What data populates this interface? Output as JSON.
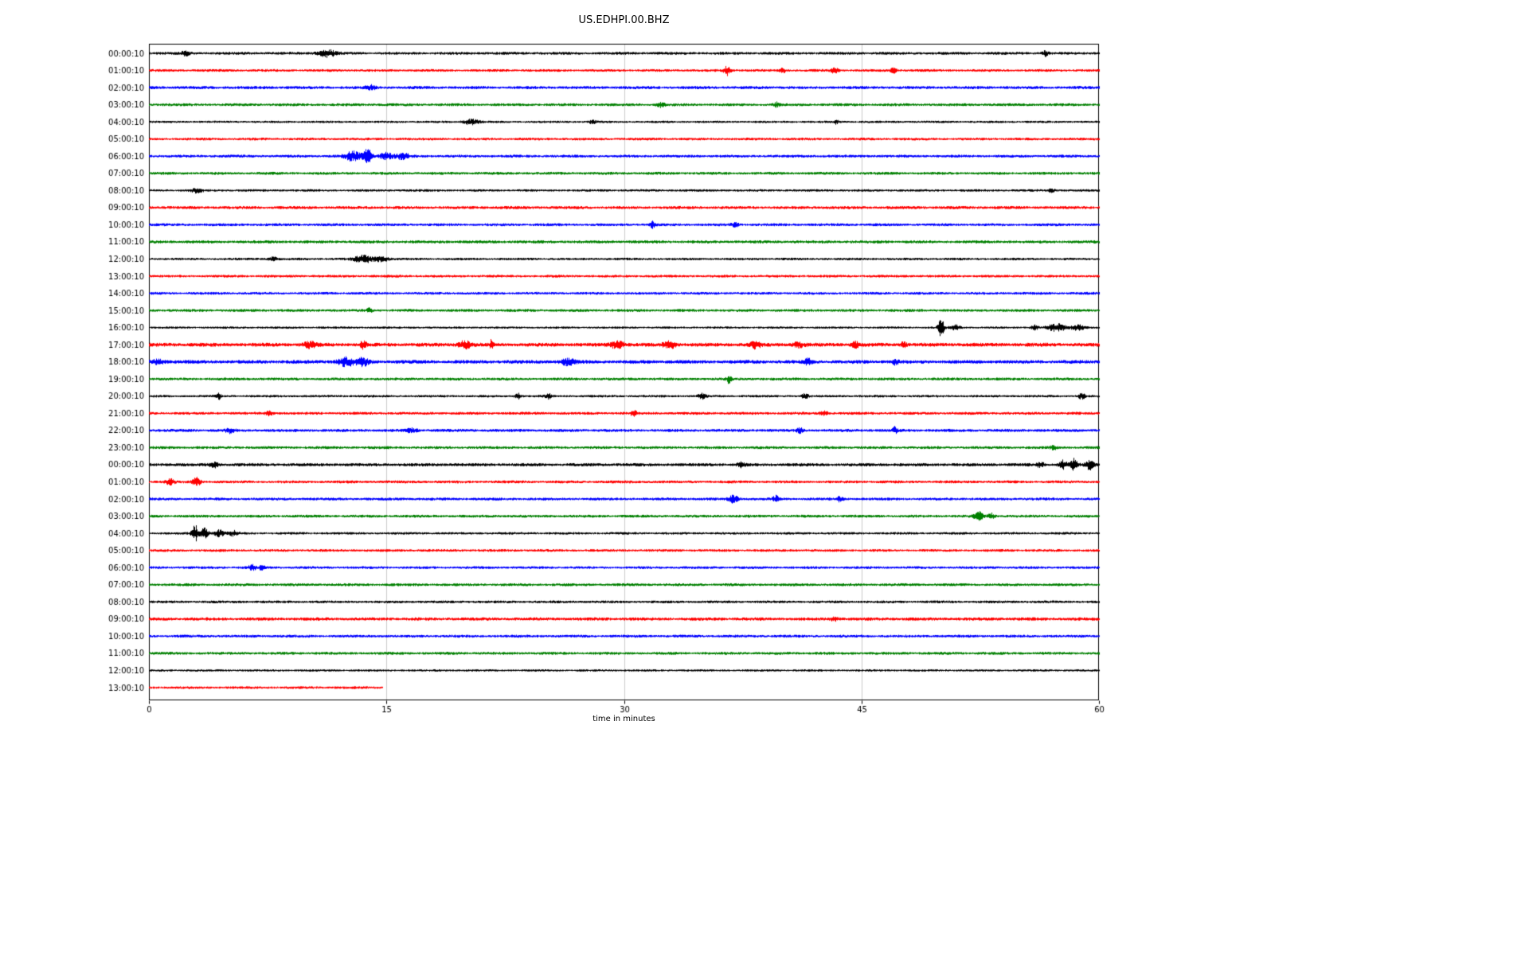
{
  "chart_data": {
    "type": "line",
    "subtype": "seismogram-dayplot",
    "title": "US.EDHPI.00.BHZ",
    "xlabel": "time in minutes",
    "ylabel": "",
    "x_range": [
      0,
      60
    ],
    "x_ticks": [
      0,
      15,
      30,
      45,
      60
    ],
    "grid": "vertical-light",
    "trace_color_cycle": [
      "#000000",
      "#ff0000",
      "#0000ff",
      "#008000"
    ],
    "rows": [
      {
        "label": "00:00:10",
        "color": "#000000",
        "base_amp": 1.5,
        "duration_min": 60,
        "events": [
          [
            2.3,
            2,
            0.4
          ],
          [
            11.2,
            3.5,
            1.0
          ],
          [
            56.6,
            2.5,
            0.3
          ]
        ]
      },
      {
        "label": "01:00:10",
        "color": "#ff0000",
        "base_amp": 1.4,
        "duration_min": 60,
        "events": [
          [
            36.5,
            5,
            0.35
          ],
          [
            40.0,
            2.5,
            0.3
          ],
          [
            43.3,
            3,
            0.35
          ],
          [
            47.0,
            2.5,
            0.3
          ]
        ]
      },
      {
        "label": "02:00:10",
        "color": "#0000ff",
        "base_amp": 1.6,
        "duration_min": 60,
        "events": [
          [
            14.0,
            2,
            0.5
          ]
        ]
      },
      {
        "label": "03:00:10",
        "color": "#008000",
        "base_amp": 1.5,
        "duration_min": 60,
        "events": [
          [
            32.3,
            2.5,
            0.4
          ],
          [
            39.6,
            2,
            0.3
          ]
        ]
      },
      {
        "label": "04:00:10",
        "color": "#000000",
        "base_amp": 1.2,
        "duration_min": 60,
        "events": [
          [
            20.3,
            3.5,
            0.8
          ],
          [
            28.0,
            1.8,
            0.4
          ],
          [
            43.4,
            2.2,
            0.2
          ]
        ]
      },
      {
        "label": "05:00:10",
        "color": "#ff0000",
        "base_amp": 1.4,
        "duration_min": 60,
        "events": []
      },
      {
        "label": "06:00:10",
        "color": "#0000ff",
        "base_amp": 1.5,
        "duration_min": 60,
        "events": [
          [
            12.9,
            4.5,
            0.9
          ],
          [
            13.8,
            8,
            0.45
          ],
          [
            14.9,
            3.5,
            0.7
          ],
          [
            16.0,
            2.5,
            0.8
          ]
        ]
      },
      {
        "label": "07:00:10",
        "color": "#008000",
        "base_amp": 1.5,
        "duration_min": 60,
        "events": []
      },
      {
        "label": "08:00:10",
        "color": "#000000",
        "base_amp": 1.3,
        "duration_min": 60,
        "events": [
          [
            3.0,
            2,
            0.6
          ],
          [
            57.0,
            1.8,
            0.4
          ]
        ]
      },
      {
        "label": "09:00:10",
        "color": "#ff0000",
        "base_amp": 1.6,
        "duration_min": 60,
        "events": []
      },
      {
        "label": "10:00:10",
        "color": "#0000ff",
        "base_amp": 1.5,
        "duration_min": 60,
        "events": [
          [
            31.8,
            3,
            0.25
          ],
          [
            37.0,
            2,
            0.4
          ]
        ]
      },
      {
        "label": "11:00:10",
        "color": "#008000",
        "base_amp": 1.6,
        "duration_min": 60,
        "events": []
      },
      {
        "label": "12:00:10",
        "color": "#000000",
        "base_amp": 1.3,
        "duration_min": 60,
        "events": [
          [
            7.8,
            2.3,
            0.5
          ],
          [
            13.6,
            3.5,
            1.1
          ],
          [
            14.7,
            3,
            0.7
          ]
        ]
      },
      {
        "label": "13:00:10",
        "color": "#ff0000",
        "base_amp": 1.4,
        "duration_min": 60,
        "events": []
      },
      {
        "label": "14:00:10",
        "color": "#0000ff",
        "base_amp": 1.4,
        "duration_min": 60,
        "events": []
      },
      {
        "label": "15:00:10",
        "color": "#008000",
        "base_amp": 1.5,
        "duration_min": 60,
        "events": [
          [
            13.9,
            2,
            0.3
          ]
        ]
      },
      {
        "label": "16:00:10",
        "color": "#000000",
        "base_amp": 1.2,
        "duration_min": 60,
        "events": [
          [
            50.0,
            10,
            0.3
          ],
          [
            50.9,
            2.8,
            0.5
          ],
          [
            55.9,
            2.6,
            0.4
          ],
          [
            57.3,
            3.5,
            1.0
          ],
          [
            58.7,
            3.2,
            0.7
          ]
        ]
      },
      {
        "label": "17:00:10",
        "color": "#ff0000",
        "base_amp": 2.0,
        "duration_min": 60,
        "events": [
          [
            10.1,
            2.6,
            0.7
          ],
          [
            13.5,
            3.5,
            0.35
          ],
          [
            19.9,
            4,
            0.7
          ],
          [
            21.6,
            5,
            0.18
          ],
          [
            29.6,
            4,
            0.8
          ],
          [
            32.9,
            3.5,
            0.7
          ],
          [
            38.3,
            3.5,
            0.5
          ],
          [
            41.0,
            2.5,
            0.6
          ],
          [
            44.6,
            2.6,
            0.4
          ],
          [
            47.6,
            2.6,
            0.4
          ]
        ]
      },
      {
        "label": "18:00:10",
        "color": "#0000ff",
        "base_amp": 1.9,
        "duration_min": 60,
        "events": [
          [
            0.6,
            2.6,
            0.7
          ],
          [
            12.4,
            4,
            0.9
          ],
          [
            13.5,
            3.5,
            0.7
          ],
          [
            26.4,
            3,
            0.8
          ],
          [
            41.6,
            3.2,
            0.35
          ],
          [
            47.1,
            2.8,
            0.35
          ]
        ]
      },
      {
        "label": "19:00:10",
        "color": "#008000",
        "base_amp": 1.5,
        "duration_min": 60,
        "events": [
          [
            36.6,
            3.5,
            0.25
          ]
        ]
      },
      {
        "label": "20:00:10",
        "color": "#000000",
        "base_amp": 1.3,
        "duration_min": 60,
        "events": [
          [
            4.4,
            2.8,
            0.25
          ],
          [
            23.3,
            3.5,
            0.35
          ],
          [
            25.2,
            2.8,
            0.3
          ],
          [
            34.9,
            2.6,
            0.4
          ],
          [
            41.4,
            3,
            0.35
          ],
          [
            58.9,
            3.2,
            0.35
          ]
        ]
      },
      {
        "label": "21:00:10",
        "color": "#ff0000",
        "base_amp": 1.5,
        "duration_min": 60,
        "events": [
          [
            7.6,
            3,
            0.35
          ],
          [
            30.6,
            2.2,
            0.35
          ],
          [
            42.6,
            2.6,
            0.4
          ]
        ]
      },
      {
        "label": "22:00:10",
        "color": "#0000ff",
        "base_amp": 1.6,
        "duration_min": 60,
        "events": [
          [
            5.1,
            2.2,
            0.45
          ],
          [
            16.6,
            2.2,
            0.5
          ],
          [
            41.1,
            2.6,
            0.35
          ],
          [
            47.1,
            3,
            0.25
          ]
        ]
      },
      {
        "label": "23:00:10",
        "color": "#008000",
        "base_amp": 1.5,
        "duration_min": 60,
        "events": [
          [
            57.1,
            2.8,
            0.25
          ]
        ]
      },
      {
        "label": "00:00:10",
        "color": "#000000",
        "base_amp": 1.7,
        "duration_min": 60,
        "events": [
          [
            4.1,
            2.6,
            0.5
          ],
          [
            37.4,
            3,
            0.35
          ],
          [
            56.3,
            2.8,
            0.35
          ],
          [
            57.7,
            4.5,
            0.4
          ],
          [
            58.4,
            5.5,
            0.35
          ],
          [
            59.4,
            5,
            0.4
          ]
        ]
      },
      {
        "label": "01:00:10",
        "color": "#ff0000",
        "base_amp": 1.5,
        "duration_min": 60,
        "events": [
          [
            1.3,
            2.6,
            0.45
          ],
          [
            3.0,
            4.5,
            0.4
          ]
        ]
      },
      {
        "label": "02:00:10",
        "color": "#0000ff",
        "base_amp": 1.5,
        "duration_min": 60,
        "events": [
          [
            36.9,
            4,
            0.55
          ],
          [
            39.6,
            3,
            0.35
          ],
          [
            43.6,
            3,
            0.35
          ]
        ]
      },
      {
        "label": "03:00:10",
        "color": "#008000",
        "base_amp": 1.5,
        "duration_min": 60,
        "events": [
          [
            52.4,
            4,
            0.5
          ],
          [
            53.2,
            3,
            0.35
          ]
        ]
      },
      {
        "label": "04:00:10",
        "color": "#000000",
        "base_amp": 1.3,
        "duration_min": 60,
        "events": [
          [
            2.9,
            8.5,
            0.35
          ],
          [
            3.5,
            6,
            0.45
          ],
          [
            4.4,
            3.5,
            0.55
          ],
          [
            5.3,
            2.5,
            0.5
          ]
        ]
      },
      {
        "label": "05:00:10",
        "color": "#ff0000",
        "base_amp": 1.4,
        "duration_min": 60,
        "events": []
      },
      {
        "label": "06:00:10",
        "color": "#0000ff",
        "base_amp": 1.4,
        "duration_min": 60,
        "events": [
          [
            6.5,
            3.2,
            0.35
          ],
          [
            7.1,
            2.2,
            0.3
          ]
        ]
      },
      {
        "label": "07:00:10",
        "color": "#008000",
        "base_amp": 1.5,
        "duration_min": 60,
        "events": []
      },
      {
        "label": "08:00:10",
        "color": "#000000",
        "base_amp": 1.4,
        "duration_min": 60,
        "events": []
      },
      {
        "label": "09:00:10",
        "color": "#ff0000",
        "base_amp": 1.7,
        "duration_min": 60,
        "events": [
          [
            43.3,
            2.2,
            0.45
          ]
        ]
      },
      {
        "label": "10:00:10",
        "color": "#0000ff",
        "base_amp": 1.5,
        "duration_min": 60,
        "events": []
      },
      {
        "label": "11:00:10",
        "color": "#008000",
        "base_amp": 1.5,
        "duration_min": 60,
        "events": []
      },
      {
        "label": "12:00:10",
        "color": "#000000",
        "base_amp": 1.2,
        "duration_min": 60,
        "events": []
      },
      {
        "label": "13:00:10",
        "color": "#ff0000",
        "base_amp": 1.4,
        "duration_min": 14.75,
        "events": []
      }
    ]
  }
}
